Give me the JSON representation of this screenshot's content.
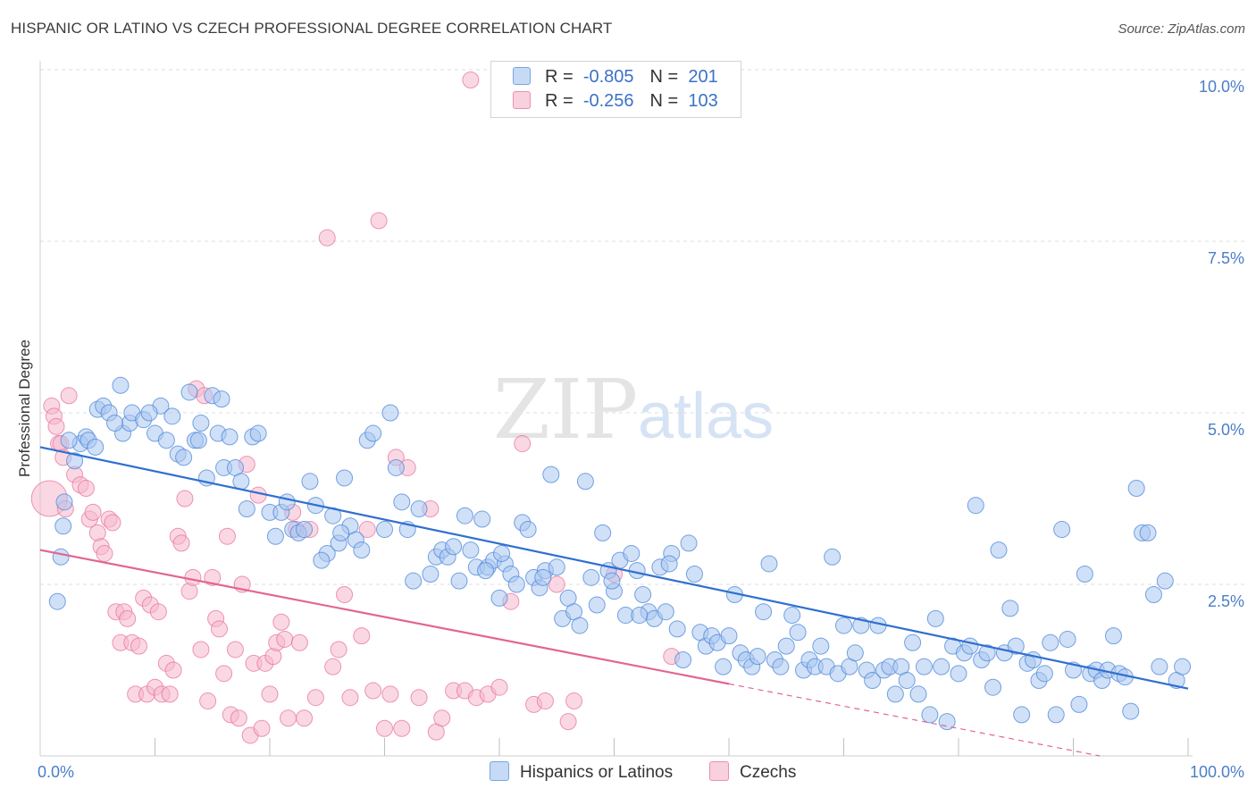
{
  "header": {
    "title": "HISPANIC OR LATINO VS CZECH PROFESSIONAL DEGREE CORRELATION CHART",
    "source": "Source: ZipAtlas.com"
  },
  "legend": {
    "rows": [
      {
        "r_label": "R =",
        "r_value": "-0.805",
        "n_label": "N =",
        "n_value": "201",
        "color": "#a9c7f0"
      },
      {
        "r_label": "R =",
        "r_value": "-0.256",
        "n_label": "N =",
        "n_value": "103",
        "color": "#f5b8cc"
      }
    ]
  },
  "bottom_legend": [
    {
      "label": "Hispanics or Latinos",
      "color": "#a9c7f0"
    },
    {
      "label": "Czechs",
      "color": "#f5b8cc"
    }
  ],
  "watermark": {
    "zip": "ZIP",
    "atlas": "atlas"
  },
  "chart_data": {
    "type": "scatter",
    "title": "HISPANIC OR LATINO VS CZECH PROFESSIONAL DEGREE CORRELATION CHART",
    "xlabel": "",
    "ylabel": "Professional Degree",
    "xlim": [
      0,
      100
    ],
    "ylim": [
      0,
      10.5
    ],
    "x_tick_labels": [
      "0.0%",
      "100.0%"
    ],
    "y_ticks": [
      2.5,
      5.0,
      7.5,
      10.0
    ],
    "y_tick_labels": [
      "2.5%",
      "5.0%",
      "7.5%",
      "10.0%"
    ],
    "grid": true,
    "legend_position": "top-center",
    "series": [
      {
        "name": "Hispanics or Latinos",
        "color": "#4a86d8",
        "fill": "#a9c7f0",
        "trend": {
          "x0": 0,
          "y0": 4.5,
          "x1": 100,
          "y1": 0.98
        },
        "points": [
          [
            1.8,
            2.9
          ],
          [
            2,
            3.35
          ],
          [
            2.1,
            3.7
          ],
          [
            3,
            4.3
          ],
          [
            3.5,
            4.55
          ],
          [
            4,
            4.65
          ],
          [
            4.2,
            4.6
          ],
          [
            5,
            5.05
          ],
          [
            5.5,
            5.1
          ],
          [
            6,
            5.0
          ],
          [
            7,
            5.4
          ],
          [
            7.2,
            4.7
          ],
          [
            7.8,
            4.85
          ],
          [
            8,
            5.0
          ],
          [
            9,
            4.9
          ],
          [
            10,
            4.7
          ],
          [
            10.5,
            5.1
          ],
          [
            11,
            4.6
          ],
          [
            11.5,
            4.95
          ],
          [
            12,
            4.4
          ],
          [
            12.5,
            4.35
          ],
          [
            13,
            5.3
          ],
          [
            13.5,
            4.6
          ],
          [
            14,
            4.85
          ],
          [
            14.5,
            4.05
          ],
          [
            15,
            5.25
          ],
          [
            15.5,
            4.7
          ],
          [
            16,
            4.2
          ],
          [
            16.5,
            4.65
          ],
          [
            17,
            4.2
          ],
          [
            17.5,
            4.0
          ],
          [
            18,
            3.6
          ],
          [
            18.5,
            4.65
          ],
          [
            19,
            4.7
          ],
          [
            20,
            3.55
          ],
          [
            20.5,
            3.2
          ],
          [
            21,
            3.55
          ],
          [
            21.5,
            3.7
          ],
          [
            22,
            3.3
          ],
          [
            22.5,
            3.25
          ],
          [
            23,
            3.3
          ],
          [
            23.5,
            4.0
          ],
          [
            24,
            3.65
          ],
          [
            25,
            2.95
          ],
          [
            25.5,
            3.5
          ],
          [
            26,
            3.1
          ],
          [
            26.5,
            4.05
          ],
          [
            27,
            3.35
          ],
          [
            27.5,
            3.15
          ],
          [
            28,
            3.0
          ],
          [
            28.5,
            4.6
          ],
          [
            29,
            4.7
          ],
          [
            30,
            3.3
          ],
          [
            30.5,
            5.0
          ],
          [
            31,
            4.2
          ],
          [
            31.5,
            3.7
          ],
          [
            32,
            3.3
          ],
          [
            32.5,
            2.55
          ],
          [
            33,
            3.6
          ],
          [
            34,
            2.65
          ],
          [
            34.5,
            2.9
          ],
          [
            35,
            3.0
          ],
          [
            35.5,
            2.9
          ],
          [
            36,
            3.05
          ],
          [
            36.5,
            2.55
          ],
          [
            37,
            3.5
          ],
          [
            37.5,
            3.0
          ],
          [
            38,
            2.75
          ],
          [
            38.5,
            3.45
          ],
          [
            39,
            2.75
          ],
          [
            39.5,
            2.85
          ],
          [
            40,
            2.3
          ],
          [
            40.5,
            2.8
          ],
          [
            41,
            2.65
          ],
          [
            41.5,
            2.5
          ],
          [
            42,
            3.4
          ],
          [
            42.5,
            3.3
          ],
          [
            43,
            2.6
          ],
          [
            43.5,
            2.45
          ],
          [
            44,
            2.7
          ],
          [
            44.5,
            4.1
          ],
          [
            45,
            2.75
          ],
          [
            45.5,
            2.0
          ],
          [
            46,
            2.3
          ],
          [
            46.5,
            2.1
          ],
          [
            47,
            1.9
          ],
          [
            47.5,
            4.0
          ],
          [
            48,
            2.6
          ],
          [
            48.5,
            2.2
          ],
          [
            49,
            3.25
          ],
          [
            49.5,
            2.7
          ],
          [
            50,
            2.4
          ],
          [
            50.5,
            2.85
          ],
          [
            51,
            2.05
          ],
          [
            51.5,
            2.95
          ],
          [
            52,
            2.7
          ],
          [
            52.5,
            2.35
          ],
          [
            53,
            2.1
          ],
          [
            53.5,
            2.0
          ],
          [
            54,
            2.75
          ],
          [
            54.5,
            2.1
          ],
          [
            55,
            2.95
          ],
          [
            55.5,
            1.85
          ],
          [
            56,
            1.4
          ],
          [
            56.5,
            3.1
          ],
          [
            57,
            2.65
          ],
          [
            57.5,
            1.8
          ],
          [
            58,
            1.6
          ],
          [
            58.5,
            1.75
          ],
          [
            59,
            1.65
          ],
          [
            59.5,
            1.3
          ],
          [
            60,
            1.75
          ],
          [
            60.5,
            2.35
          ],
          [
            61,
            1.5
          ],
          [
            61.5,
            1.4
          ],
          [
            62,
            1.3
          ],
          [
            62.5,
            1.45
          ],
          [
            63,
            2.1
          ],
          [
            63.5,
            2.8
          ],
          [
            64,
            1.4
          ],
          [
            64.5,
            1.3
          ],
          [
            65,
            1.6
          ],
          [
            65.5,
            2.05
          ],
          [
            66,
            1.8
          ],
          [
            66.5,
            1.25
          ],
          [
            67,
            1.4
          ],
          [
            67.5,
            1.3
          ],
          [
            68,
            1.6
          ],
          [
            68.5,
            1.3
          ],
          [
            69,
            2.9
          ],
          [
            69.5,
            1.2
          ],
          [
            70,
            1.9
          ],
          [
            70.5,
            1.3
          ],
          [
            71,
            1.5
          ],
          [
            71.5,
            1.9
          ],
          [
            72,
            1.25
          ],
          [
            72.5,
            1.1
          ],
          [
            73,
            1.9
          ],
          [
            73.5,
            1.25
          ],
          [
            74,
            1.3
          ],
          [
            74.5,
            0.9
          ],
          [
            75,
            1.3
          ],
          [
            75.5,
            1.1
          ],
          [
            76,
            1.65
          ],
          [
            76.5,
            0.9
          ],
          [
            77,
            1.3
          ],
          [
            77.5,
            0.6
          ],
          [
            78,
            2.0
          ],
          [
            78.5,
            1.3
          ],
          [
            79,
            0.5
          ],
          [
            79.5,
            1.6
          ],
          [
            80,
            1.2
          ],
          [
            80.5,
            1.5
          ],
          [
            81,
            1.6
          ],
          [
            81.5,
            3.65
          ],
          [
            82,
            1.4
          ],
          [
            82.5,
            1.5
          ],
          [
            83,
            1.0
          ],
          [
            83.5,
            3.0
          ],
          [
            84,
            1.5
          ],
          [
            84.5,
            2.15
          ],
          [
            85,
            1.6
          ],
          [
            85.5,
            0.6
          ],
          [
            86,
            1.35
          ],
          [
            86.5,
            1.4
          ],
          [
            87,
            1.1
          ],
          [
            87.5,
            1.2
          ],
          [
            88,
            1.65
          ],
          [
            88.5,
            0.6
          ],
          [
            89,
            3.3
          ],
          [
            89.5,
            1.7
          ],
          [
            90,
            1.25
          ],
          [
            90.5,
            0.75
          ],
          [
            91,
            2.65
          ],
          [
            91.5,
            1.2
          ],
          [
            92,
            1.25
          ],
          [
            92.5,
            1.1
          ],
          [
            93,
            1.25
          ],
          [
            93.5,
            1.75
          ],
          [
            94,
            1.2
          ],
          [
            94.5,
            1.15
          ],
          [
            95,
            0.65
          ],
          [
            95.5,
            3.9
          ],
          [
            96,
            3.25
          ],
          [
            96.5,
            3.25
          ],
          [
            97,
            2.35
          ],
          [
            97.5,
            1.3
          ],
          [
            98,
            2.55
          ],
          [
            99,
            1.1
          ],
          [
            99.5,
            1.3
          ],
          [
            1.5,
            2.25
          ],
          [
            2.5,
            4.6
          ],
          [
            4.8,
            4.5
          ],
          [
            6.5,
            4.85
          ],
          [
            9.5,
            5.0
          ],
          [
            13.8,
            4.6
          ],
          [
            15.8,
            5.2
          ],
          [
            24.5,
            2.85
          ],
          [
            26.2,
            3.25
          ],
          [
            38.8,
            2.7
          ],
          [
            40.2,
            2.95
          ],
          [
            43.8,
            2.6
          ],
          [
            49.8,
            2.55
          ],
          [
            52.2,
            2.05
          ],
          [
            54.8,
            2.8
          ]
        ]
      },
      {
        "name": "Czechs",
        "color": "#e8739c",
        "fill": "#f5b8cc",
        "trend": {
          "x0": 0,
          "y0": 3.0,
          "x1": 60,
          "y1": 1.05
        },
        "trend_dashed": {
          "x0": 60,
          "y0": 1.05,
          "x1": 100,
          "y1": -0.25
        },
        "points": [
          [
            0.8,
            3.75
          ],
          [
            1,
            5.1
          ],
          [
            1.2,
            4.95
          ],
          [
            1.4,
            4.8
          ],
          [
            1.6,
            4.55
          ],
          [
            1.8,
            4.55
          ],
          [
            2,
            4.35
          ],
          [
            2.2,
            3.6
          ],
          [
            2.5,
            5.25
          ],
          [
            3,
            4.1
          ],
          [
            3.5,
            3.95
          ],
          [
            4,
            3.9
          ],
          [
            4.3,
            3.45
          ],
          [
            4.6,
            3.55
          ],
          [
            5,
            3.25
          ],
          [
            5.3,
            3.05
          ],
          [
            5.6,
            2.95
          ],
          [
            6,
            3.45
          ],
          [
            6.3,
            3.4
          ],
          [
            6.6,
            2.1
          ],
          [
            7,
            1.65
          ],
          [
            7.3,
            2.1
          ],
          [
            7.6,
            2.0
          ],
          [
            8,
            1.65
          ],
          [
            8.3,
            0.9
          ],
          [
            8.6,
            1.6
          ],
          [
            9,
            2.3
          ],
          [
            9.3,
            0.9
          ],
          [
            9.6,
            2.2
          ],
          [
            10,
            1.0
          ],
          [
            10.3,
            2.1
          ],
          [
            10.6,
            0.9
          ],
          [
            11,
            1.35
          ],
          [
            11.3,
            0.9
          ],
          [
            11.6,
            1.25
          ],
          [
            12,
            3.2
          ],
          [
            12.3,
            3.1
          ],
          [
            12.6,
            3.75
          ],
          [
            13,
            2.4
          ],
          [
            13.3,
            2.6
          ],
          [
            13.6,
            5.35
          ],
          [
            14,
            1.55
          ],
          [
            14.3,
            5.25
          ],
          [
            14.6,
            0.8
          ],
          [
            15,
            2.6
          ],
          [
            15.3,
            2.0
          ],
          [
            15.6,
            1.85
          ],
          [
            16,
            1.2
          ],
          [
            16.3,
            3.2
          ],
          [
            16.6,
            0.6
          ],
          [
            17,
            1.55
          ],
          [
            17.3,
            0.55
          ],
          [
            17.6,
            2.5
          ],
          [
            18,
            4.25
          ],
          [
            18.3,
            0.3
          ],
          [
            18.6,
            1.35
          ],
          [
            19,
            3.8
          ],
          [
            19.3,
            0.4
          ],
          [
            19.6,
            1.35
          ],
          [
            20,
            0.9
          ],
          [
            20.3,
            1.45
          ],
          [
            20.6,
            1.65
          ],
          [
            21,
            1.95
          ],
          [
            21.3,
            1.7
          ],
          [
            21.6,
            0.55
          ],
          [
            22,
            3.55
          ],
          [
            22.3,
            3.3
          ],
          [
            22.6,
            1.65
          ],
          [
            23,
            0.55
          ],
          [
            23.5,
            3.3
          ],
          [
            24,
            0.85
          ],
          [
            25,
            7.55
          ],
          [
            25.5,
            1.3
          ],
          [
            26,
            1.55
          ],
          [
            26.5,
            2.35
          ],
          [
            27,
            0.85
          ],
          [
            28,
            1.75
          ],
          [
            28.5,
            3.3
          ],
          [
            29,
            0.95
          ],
          [
            29.5,
            7.8
          ],
          [
            30,
            0.4
          ],
          [
            30.5,
            0.9
          ],
          [
            31,
            4.35
          ],
          [
            31.5,
            0.4
          ],
          [
            32,
            4.2
          ],
          [
            33,
            0.85
          ],
          [
            34,
            3.6
          ],
          [
            34.5,
            0.35
          ],
          [
            35,
            0.55
          ],
          [
            36,
            0.95
          ],
          [
            37,
            0.95
          ],
          [
            37.5,
            9.85
          ],
          [
            38,
            0.85
          ],
          [
            39,
            0.9
          ],
          [
            40,
            1.0
          ],
          [
            41,
            2.25
          ],
          [
            42,
            4.55
          ],
          [
            43,
            0.75
          ],
          [
            44,
            0.8
          ],
          [
            45,
            2.5
          ],
          [
            46,
            0.5
          ],
          [
            46.5,
            0.8
          ],
          [
            50,
            2.65
          ],
          [
            55,
            1.45
          ]
        ]
      }
    ]
  }
}
